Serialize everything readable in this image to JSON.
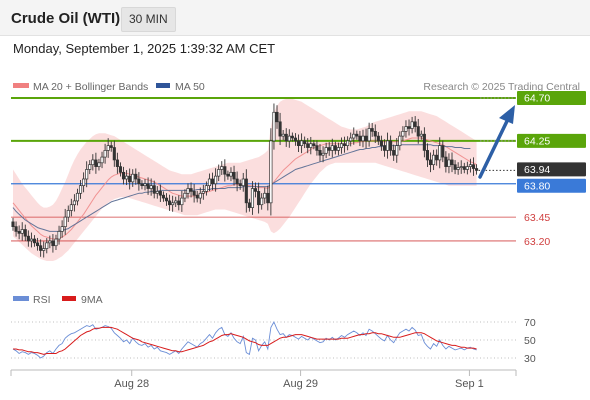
{
  "header": {
    "instrument": "Crude Oil (WTI)",
    "timeframe": "30 MIN",
    "datetime": "Monday, September 1, 2025 1:39:32 AM CET"
  },
  "legend": {
    "bollinger": "MA 20 + Bollinger Bands",
    "ma50": "MA 50",
    "credit": "Research © 2025 Trading Central",
    "rsi": "RSI",
    "ma9": "9MA"
  },
  "colors": {
    "green_level": "#5aa50a",
    "blue_level": "#3a7ad8",
    "red_level": "#d04040",
    "current_price": "#333333",
    "ma50": "#5c6f95",
    "bollinger_fill": "#fbdada",
    "rsi_line": "#6b8ed6",
    "rsi_ma": "#d81c1c",
    "arrow": "#2d5fa6"
  },
  "chart_data": {
    "type": "candlestick",
    "x_ticks": [
      "Aug 28",
      "Aug 29",
      "Sep 1"
    ],
    "ylim": [
      63.0,
      64.85
    ],
    "key_levels": [
      {
        "value": "64.70",
        "kind": "resistance"
      },
      {
        "value": "64.25",
        "kind": "resistance"
      },
      {
        "value": "63.94",
        "kind": "current"
      },
      {
        "value": "63.80",
        "kind": "pivot"
      },
      {
        "value": "63.45",
        "kind": "support"
      },
      {
        "value": "63.20",
        "kind": "support"
      }
    ],
    "close": [
      63.35,
      63.3,
      63.28,
      63.32,
      63.25,
      63.2,
      63.22,
      63.18,
      63.15,
      63.1,
      63.12,
      63.18,
      63.2,
      63.15,
      63.22,
      63.3,
      63.35,
      63.45,
      63.52,
      63.58,
      63.62,
      63.7,
      63.78,
      63.85,
      63.95,
      64.0,
      64.05,
      63.98,
      64.02,
      64.08,
      64.15,
      64.2,
      64.18,
      64.05,
      63.98,
      63.92,
      63.85,
      63.88,
      63.82,
      63.9,
      63.85,
      63.8,
      63.78,
      63.8,
      63.75,
      63.78,
      63.7,
      63.72,
      63.68,
      63.65,
      63.62,
      63.58,
      63.6,
      63.62,
      63.58,
      63.65,
      63.7,
      63.75,
      63.72,
      63.68,
      63.65,
      63.7,
      63.72,
      63.78,
      63.85,
      63.8,
      63.88,
      63.95,
      63.98,
      63.9,
      63.88,
      63.92,
      63.85,
      63.8,
      63.78,
      63.85,
      63.6,
      63.55,
      63.75,
      63.72,
      63.58,
      63.65,
      63.7,
      63.6,
      64.25,
      64.55,
      64.45,
      64.3,
      64.32,
      64.25,
      64.3,
      64.28,
      64.25,
      64.2,
      64.25,
      64.22,
      64.18,
      64.22,
      64.2,
      64.15,
      64.1,
      64.12,
      64.18,
      64.15,
      64.2,
      64.15,
      64.18,
      64.22,
      64.2,
      64.25,
      64.28,
      64.32,
      64.3,
      64.25,
      64.3,
      64.25,
      64.38,
      64.35,
      64.3,
      64.25,
      64.2,
      64.15,
      64.25,
      64.15,
      64.1,
      64.2,
      64.3,
      64.35,
      64.4,
      64.38,
      64.45,
      64.4,
      64.3,
      64.32,
      64.15,
      64.05,
      64.0,
      64.1,
      64.05,
      64.2,
      64.08,
      63.98,
      64.05,
      64.0,
      63.95,
      63.97,
      63.98,
      63.95,
      63.98,
      64.0,
      63.96,
      63.94
    ],
    "ma20": [
      63.6,
      63.56,
      63.52,
      63.48,
      63.44,
      63.4,
      63.36,
      63.33,
      63.3,
      63.27,
      63.25,
      63.24,
      63.23,
      63.22,
      63.22,
      63.23,
      63.24,
      63.26,
      63.29,
      63.32,
      63.36,
      63.4,
      63.44,
      63.48,
      63.53,
      63.58,
      63.63,
      63.68,
      63.72,
      63.76,
      63.8,
      63.84,
      63.87,
      63.89,
      63.9,
      63.91,
      63.91,
      63.91,
      63.9,
      63.89,
      63.88,
      63.87,
      63.86,
      63.85,
      63.84,
      63.83,
      63.82,
      63.8,
      63.78,
      63.76,
      63.74,
      63.72,
      63.7,
      63.69,
      63.68,
      63.67,
      63.67,
      63.67,
      63.67,
      63.67,
      63.68,
      63.69,
      63.7,
      63.71,
      63.72,
      63.73,
      63.74,
      63.75,
      63.76,
      63.77,
      63.78,
      63.78,
      63.79,
      63.79,
      63.8,
      63.8,
      63.79,
      63.78,
      63.78,
      63.77,
      63.76,
      63.76,
      63.76,
      63.75,
      63.78,
      63.82,
      63.86,
      63.9,
      63.94,
      63.97,
      64.0,
      64.03,
      64.06,
      64.08,
      64.1,
      64.12,
      64.14,
      64.16,
      64.18,
      64.19,
      64.2,
      64.21,
      64.22,
      64.22,
      64.22,
      64.22,
      64.22,
      64.22,
      64.22,
      64.22,
      64.22,
      64.23,
      64.23,
      64.24,
      64.24,
      64.25,
      64.25,
      64.25,
      64.25,
      64.25,
      64.24,
      64.24,
      64.24,
      64.24,
      64.24,
      64.24,
      64.25,
      64.25,
      64.26,
      64.27,
      64.28,
      64.28,
      64.28,
      64.28,
      64.27,
      64.26,
      64.25,
      64.24,
      64.23,
      64.22,
      64.21,
      64.19,
      64.17,
      64.15,
      64.13,
      64.11,
      64.09,
      64.07,
      64.05,
      64.03,
      64.02,
      64.0
    ],
    "bb_upper": [
      63.95,
      63.9,
      63.85,
      63.8,
      63.76,
      63.72,
      63.68,
      63.64,
      63.6,
      63.57,
      63.55,
      63.55,
      63.56,
      63.58,
      63.62,
      63.68,
      63.75,
      63.82,
      63.9,
      63.98,
      64.05,
      64.11,
      64.16,
      64.2,
      64.24,
      64.27,
      64.3,
      64.32,
      64.33,
      64.33,
      64.33,
      64.32,
      64.31,
      64.3,
      64.28,
      64.26,
      64.24,
      64.22,
      64.2,
      64.18,
      64.16,
      64.14,
      64.12,
      64.1,
      64.08,
      64.06,
      64.04,
      64.02,
      64.0,
      63.98,
      63.96,
      63.94,
      63.93,
      63.92,
      63.91,
      63.9,
      63.9,
      63.9,
      63.9,
      63.91,
      63.92,
      63.93,
      63.94,
      63.95,
      63.96,
      63.97,
      63.98,
      63.99,
      64.0,
      64.01,
      64.02,
      64.02,
      64.02,
      64.02,
      64.02,
      64.03,
      64.04,
      64.05,
      64.06,
      64.07,
      64.08,
      64.1,
      64.12,
      64.15,
      64.4,
      64.55,
      64.62,
      64.66,
      64.68,
      64.69,
      64.69,
      64.69,
      64.68,
      64.67,
      64.66,
      64.64,
      64.62,
      64.6,
      64.58,
      64.56,
      64.54,
      64.52,
      64.5,
      64.48,
      64.46,
      64.44,
      64.42,
      64.4,
      64.39,
      64.38,
      64.37,
      64.37,
      64.37,
      64.38,
      64.39,
      64.4,
      64.42,
      64.44,
      64.45,
      64.46,
      64.47,
      64.48,
      64.49,
      64.5,
      64.51,
      64.52,
      64.53,
      64.54,
      64.55,
      64.56,
      64.56,
      64.56,
      64.56,
      64.56,
      64.55,
      64.54,
      64.53,
      64.52,
      64.51,
      64.49,
      64.47,
      64.45,
      64.43,
      64.41,
      64.39,
      64.37,
      64.35,
      64.33,
      64.31,
      64.29,
      64.27,
      64.25
    ],
    "bb_lower": [
      63.25,
      63.22,
      63.19,
      63.16,
      63.13,
      63.1,
      63.07,
      63.05,
      63.03,
      63.01,
      63.0,
      62.99,
      62.99,
      62.99,
      63.0,
      63.02,
      63.04,
      63.07,
      63.1,
      63.14,
      63.18,
      63.22,
      63.26,
      63.3,
      63.34,
      63.38,
      63.42,
      63.46,
      63.5,
      63.54,
      63.57,
      63.6,
      63.62,
      63.64,
      63.65,
      63.66,
      63.66,
      63.66,
      63.65,
      63.64,
      63.63,
      63.62,
      63.61,
      63.6,
      63.59,
      63.58,
      63.57,
      63.56,
      63.55,
      63.54,
      63.53,
      63.52,
      63.51,
      63.5,
      63.49,
      63.48,
      63.47,
      63.47,
      63.47,
      63.47,
      63.47,
      63.48,
      63.49,
      63.5,
      63.51,
      63.52,
      63.53,
      63.53,
      63.53,
      63.53,
      63.52,
      63.51,
      63.5,
      63.49,
      63.48,
      63.47,
      63.46,
      63.45,
      63.44,
      63.43,
      63.42,
      63.41,
      63.4,
      63.38,
      63.3,
      63.28,
      63.3,
      63.33,
      63.37,
      63.41,
      63.45,
      63.5,
      63.55,
      63.6,
      63.65,
      63.7,
      63.75,
      63.8,
      63.84,
      63.88,
      63.92,
      63.95,
      63.98,
      64.0,
      64.01,
      64.02,
      64.02,
      64.02,
      64.02,
      64.02,
      64.02,
      64.02,
      64.02,
      64.02,
      64.02,
      64.02,
      64.02,
      64.02,
      64.02,
      64.01,
      64.0,
      63.99,
      63.98,
      63.97,
      63.96,
      63.95,
      63.94,
      63.93,
      63.92,
      63.91,
      63.9,
      63.89,
      63.88,
      63.87,
      63.86,
      63.85,
      63.84,
      63.83,
      63.82,
      63.81,
      63.8,
      63.79,
      63.78,
      63.78,
      63.78,
      63.78,
      63.78,
      63.78,
      63.78,
      63.78,
      63.78,
      63.78
    ],
    "ma50": [
      63.55,
      63.51,
      63.48,
      63.45,
      63.42,
      63.4,
      63.38,
      63.36,
      63.34,
      63.33,
      63.32,
      63.31,
      63.3,
      63.3,
      63.3,
      63.3,
      63.31,
      63.32,
      63.33,
      63.35,
      63.37,
      63.39,
      63.41,
      63.43,
      63.45,
      63.47,
      63.49,
      63.51,
      63.53,
      63.55,
      63.57,
      63.59,
      63.61,
      63.62,
      63.63,
      63.64,
      63.65,
      63.66,
      63.67,
      63.68,
      63.69,
      63.7,
      63.7,
      63.71,
      63.71,
      63.72,
      63.72,
      63.72,
      63.73,
      63.73,
      63.73,
      63.73,
      63.73,
      63.73,
      63.73,
      63.73,
      63.73,
      63.73,
      63.73,
      63.73,
      63.74,
      63.74,
      63.74,
      63.74,
      63.74,
      63.75,
      63.75,
      63.75,
      63.75,
      63.75,
      63.76,
      63.76,
      63.76,
      63.76,
      63.76,
      63.77,
      63.77,
      63.77,
      63.77,
      63.77,
      63.77,
      63.77,
      63.77,
      63.77,
      63.79,
      63.81,
      63.83,
      63.85,
      63.87,
      63.89,
      63.91,
      63.93,
      63.95,
      63.96,
      63.97,
      63.98,
      63.99,
      64.0,
      64.01,
      64.02,
      64.03,
      64.04,
      64.05,
      64.06,
      64.07,
      64.08,
      64.09,
      64.1,
      64.11,
      64.12,
      64.13,
      64.14,
      64.15,
      64.16,
      64.16,
      64.17,
      64.17,
      64.18,
      64.18,
      64.19,
      64.19,
      64.2,
      64.2,
      64.2,
      64.2,
      64.2,
      64.21,
      64.21,
      64.21,
      64.21,
      64.21,
      64.21,
      64.21,
      64.21,
      64.21,
      64.21,
      64.21,
      64.2,
      64.2,
      64.2,
      64.2,
      64.19,
      64.19,
      64.19,
      64.18,
      64.18,
      64.18,
      64.17,
      64.17,
      64.17
    ],
    "rsi": {
      "yticks": [
        "70",
        "50",
        "30"
      ],
      "ylim": [
        20,
        80
      ],
      "values": [
        40,
        38,
        35,
        37,
        36,
        34,
        36,
        35,
        33,
        30,
        32,
        36,
        38,
        35,
        40,
        44,
        46,
        52,
        55,
        57,
        58,
        60,
        62,
        64,
        66,
        65,
        67,
        62,
        63,
        64,
        66,
        65,
        63,
        58,
        55,
        52,
        48,
        50,
        46,
        52,
        48,
        45,
        44,
        46,
        42,
        44,
        40,
        42,
        38,
        37,
        36,
        34,
        36,
        38,
        35,
        40,
        44,
        48,
        46,
        44,
        42,
        46,
        48,
        52,
        56,
        52,
        58,
        62,
        64,
        56,
        54,
        58,
        52,
        48,
        46,
        54,
        36,
        34,
        52,
        50,
        38,
        44,
        48,
        40,
        64,
        70,
        62,
        56,
        57,
        53,
        56,
        55,
        53,
        51,
        54,
        52,
        50,
        53,
        51,
        49,
        47,
        48,
        52,
        50,
        53,
        50,
        52,
        55,
        53,
        56,
        58,
        60,
        58,
        55,
        58,
        55,
        62,
        60,
        57,
        54,
        51,
        49,
        55,
        50,
        47,
        53,
        58,
        60,
        62,
        60,
        64,
        61,
        55,
        56,
        47,
        43,
        40,
        46,
        43,
        50,
        44,
        40,
        43,
        41,
        39,
        40,
        41,
        39,
        41,
        42,
        40,
        39
      ],
      "ma": [
        40,
        40,
        39,
        39,
        38,
        37,
        37,
        36,
        36,
        35,
        34,
        35,
        35,
        35,
        35,
        37,
        38,
        40,
        43,
        46,
        49,
        52,
        55,
        57,
        59,
        60,
        62,
        63,
        63,
        64,
        64,
        64,
        64,
        63,
        62,
        60,
        58,
        56,
        54,
        52,
        51,
        50,
        48,
        47,
        46,
        45,
        44,
        43,
        42,
        41,
        40,
        39,
        38,
        38,
        37,
        37,
        38,
        39,
        40,
        41,
        42,
        43,
        44,
        46,
        48,
        49,
        51,
        53,
        55,
        56,
        56,
        57,
        56,
        55,
        54,
        53,
        51,
        49,
        48,
        47,
        45,
        44,
        44,
        44,
        46,
        48,
        50,
        52,
        53,
        53,
        54,
        55,
        56,
        56,
        56,
        55,
        54,
        53,
        52,
        51,
        51,
        51,
        51,
        51,
        51,
        51,
        51,
        52,
        52,
        52,
        53,
        54,
        55,
        56,
        56,
        57,
        57,
        58,
        58,
        57,
        57,
        56,
        55,
        54,
        53,
        53,
        53,
        54,
        55,
        56,
        57,
        58,
        58,
        58,
        57,
        55,
        53,
        51,
        49,
        48,
        47,
        46,
        45,
        44,
        44,
        43,
        42,
        42,
        41,
        41,
        41,
        40
      ]
    }
  }
}
